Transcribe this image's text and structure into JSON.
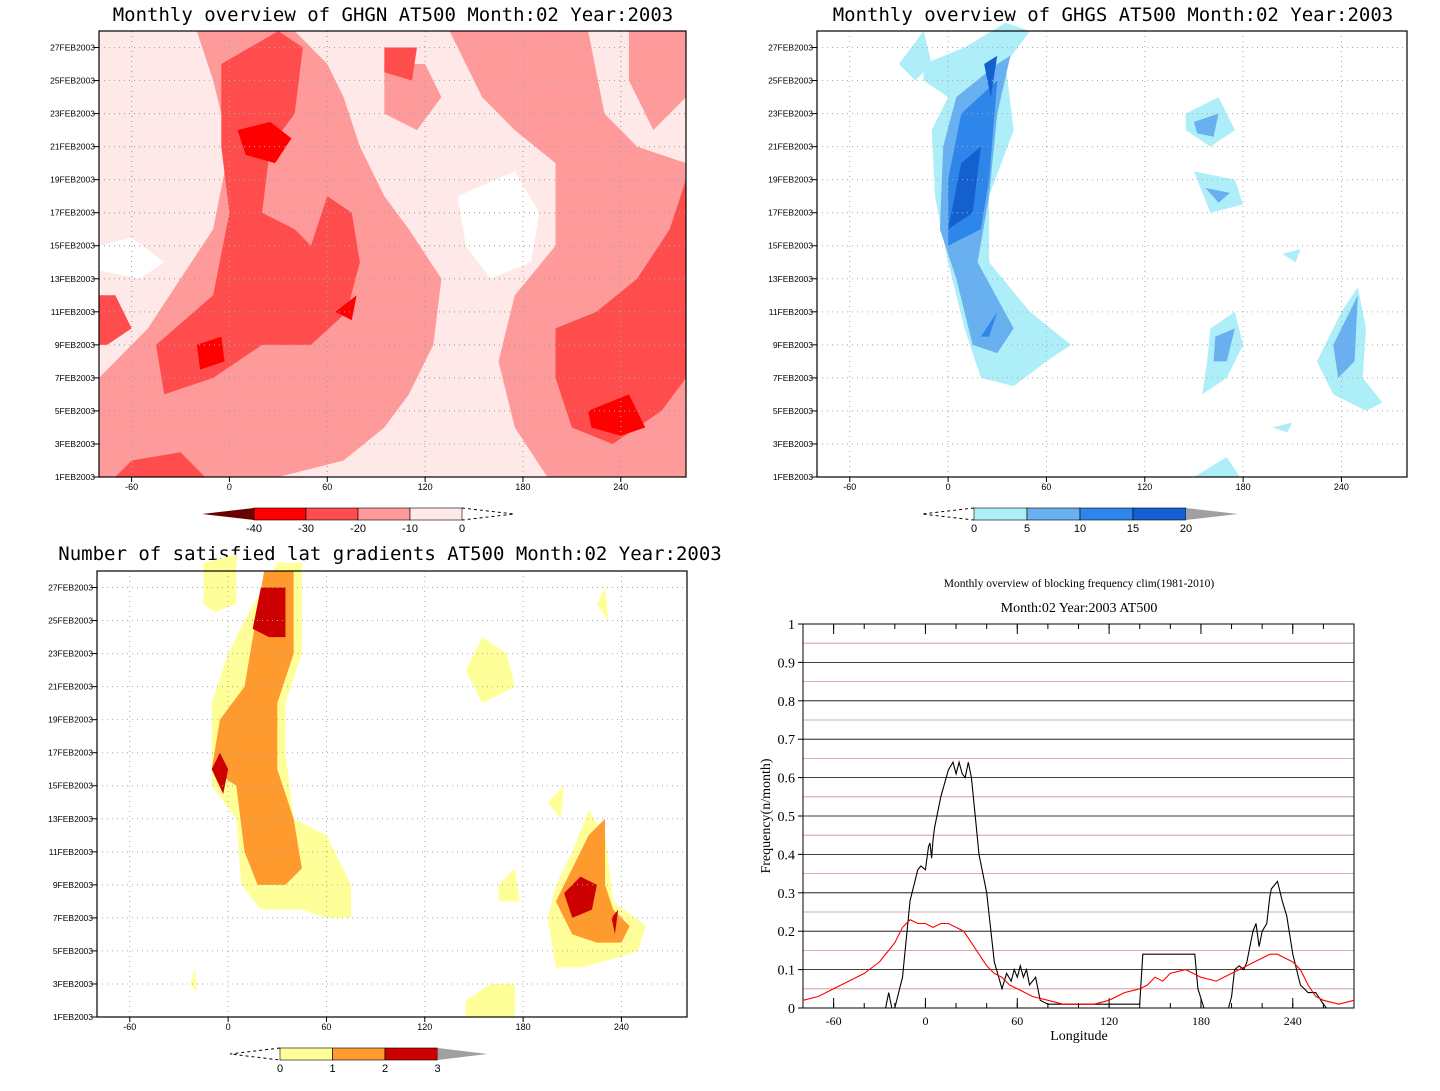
{
  "panels": {
    "ghgn": {
      "title": "Monthly overview of GHGN AT500 Month:02 Year:2003",
      "xticks": [
        {
          "v": -60,
          "label": "-60"
        },
        {
          "v": 0,
          "label": "0"
        },
        {
          "v": 60,
          "label": "60"
        },
        {
          "v": 120,
          "label": "120"
        },
        {
          "v": 180,
          "label": "180"
        },
        {
          "v": 240,
          "label": "240"
        }
      ],
      "yticks": [
        "1FEB2003",
        "3FEB2003",
        "5FEB2003",
        "7FEB2003",
        "9FEB2003",
        "11FEB2003",
        "13FEB2003",
        "15FEB2003",
        "17FEB2003",
        "19FEB2003",
        "21FEB2003",
        "23FEB2003",
        "25FEB2003",
        "27FEB2003"
      ],
      "colorbar": {
        "labels": [
          "-40",
          "-30",
          "-20",
          "-10",
          "0"
        ],
        "colors": [
          "#6b0000",
          "#ff0000",
          "#ff4c4c",
          "#ff9a9a",
          "#ffe8e8"
        ]
      }
    },
    "ghgs": {
      "title": "Monthly overview of GHGS AT500 Month:02 Year:2003",
      "xticks": [
        {
          "v": -60,
          "label": "-60"
        },
        {
          "v": 0,
          "label": "0"
        },
        {
          "v": 60,
          "label": "60"
        },
        {
          "v": 120,
          "label": "120"
        },
        {
          "v": 180,
          "label": "180"
        },
        {
          "v": 240,
          "label": "240"
        }
      ],
      "yticks": [
        "1FEB2003",
        "3FEB2003",
        "5FEB2003",
        "7FEB2003",
        "9FEB2003",
        "11FEB2003",
        "13FEB2003",
        "15FEB2003",
        "17FEB2003",
        "19FEB2003",
        "21FEB2003",
        "23FEB2003",
        "25FEB2003",
        "27FEB2003"
      ],
      "colorbar": {
        "labels": [
          "0",
          "5",
          "10",
          "15",
          "20"
        ],
        "colors": [
          "#aeeef8",
          "#68b0f0",
          "#2e86ea",
          "#1460d0",
          "#a0a0a0"
        ]
      }
    },
    "latgrad": {
      "title": "Number of satisfied lat gradients AT500 Month:02 Year:2003",
      "xticks": [
        {
          "v": -60,
          "label": "-60"
        },
        {
          "v": 0,
          "label": "0"
        },
        {
          "v": 60,
          "label": "60"
        },
        {
          "v": 120,
          "label": "120"
        },
        {
          "v": 180,
          "label": "180"
        },
        {
          "v": 240,
          "label": "240"
        }
      ],
      "yticks": [
        "1FEB2003",
        "3FEB2003",
        "5FEB2003",
        "7FEB2003",
        "9FEB2003",
        "11FEB2003",
        "13FEB2003",
        "15FEB2003",
        "17FEB2003",
        "19FEB2003",
        "21FEB2003",
        "23FEB2003",
        "25FEB2003",
        "27FEB2003"
      ],
      "colorbar": {
        "labels": [
          "0",
          "1",
          "2",
          "3"
        ],
        "colors": [
          "#ffff99",
          "#ff9a2e",
          "#cc0000",
          "#a0a0a0"
        ]
      }
    }
  },
  "chart_data": [
    {
      "type": "heatmap",
      "title": "Monthly overview of GHGN AT500 Month:02 Year:2003",
      "x_range": [
        -80,
        280
      ],
      "y_range": [
        "1FEB2003",
        "28FEB2003"
      ],
      "levels": [
        -40,
        -30,
        -20,
        -10,
        0
      ],
      "colors": {
        "below_-30": "#ff0000",
        "-30_to_-20": "#ff4c4c",
        "-20_to_-10": "#ff9a9a",
        "-10_to_0": "#ffe8e8",
        "above_0": "#ffffff"
      },
      "grid": true
    },
    {
      "type": "heatmap",
      "title": "Monthly overview of GHGS AT500 Month:02 Year:2003",
      "x_range": [
        -80,
        280
      ],
      "y_range": [
        "1FEB2003",
        "28FEB2003"
      ],
      "levels": [
        0,
        5,
        10,
        15,
        20
      ],
      "colors": {
        "0_to_5": "#aeeef8",
        "5_to_10": "#68b0f0",
        "10_to_15": "#2e86ea",
        "15_to_20": "#1460d0"
      },
      "grid": true
    },
    {
      "type": "heatmap",
      "title": "Number of satisfied lat gradients AT500 Month:02 Year:2003",
      "x_range": [
        -80,
        280
      ],
      "y_range": [
        "1FEB2003",
        "28FEB2003"
      ],
      "levels": [
        0,
        1,
        2,
        3
      ],
      "colors": {
        "0_to_1": "#ffff99",
        "1_to_2": "#ff9a2e",
        "2_to_3": "#cc0000"
      },
      "grid": true
    },
    {
      "type": "line",
      "title": "Monthly overview of blocking frequency clim(1981-2010)",
      "subtitle": "Month:02 Year:2003  AT500",
      "xlabel": "Longitude",
      "ylabel": "Frequency(n/month)",
      "xlim": [
        -80,
        280
      ],
      "ylim": [
        0,
        1
      ],
      "xticks": [
        -60,
        0,
        60,
        120,
        180,
        240
      ],
      "yticks": [
        0,
        0.1,
        0.2,
        0.3,
        0.4,
        0.5,
        0.6,
        0.7,
        0.8,
        0.9,
        1
      ],
      "series": [
        {
          "color": "#000000",
          "x": [
            -80,
            -26,
            -24,
            -22,
            -20,
            -15,
            -10,
            -5,
            -3,
            0,
            2,
            3,
            4,
            5,
            6,
            10,
            15,
            18,
            20,
            22,
            24,
            26,
            28,
            30,
            33,
            35,
            40,
            45,
            50,
            53,
            56,
            58,
            60,
            62,
            64,
            66,
            68,
            72,
            75,
            80,
            90,
            100,
            120,
            138,
            140,
            142,
            150,
            160,
            170,
            176,
            178,
            182,
            186,
            190,
            195,
            198,
            200,
            202,
            205,
            208,
            210,
            212,
            214,
            216,
            218,
            220,
            223,
            225,
            226,
            228,
            230,
            233,
            236,
            240,
            245,
            250,
            255,
            260,
            262,
            280
          ],
          "y": [
            0,
            0,
            0.04,
            0,
            0,
            0.08,
            0.28,
            0.36,
            0.37,
            0.36,
            0.42,
            0.43,
            0.39,
            0.44,
            0.47,
            0.55,
            0.62,
            0.64,
            0.61,
            0.64,
            0.61,
            0.6,
            0.64,
            0.6,
            0.48,
            0.4,
            0.3,
            0.12,
            0.05,
            0.09,
            0.07,
            0.1,
            0.08,
            0.11,
            0.08,
            0.1,
            0.06,
            0.08,
            0.02,
            0.01,
            0.01,
            0.01,
            0.01,
            0.01,
            0.01,
            0.14,
            0.14,
            0.14,
            0.14,
            0.14,
            0.05,
            0,
            0,
            0,
            0,
            0,
            0.03,
            0.1,
            0.11,
            0.1,
            0.12,
            0.16,
            0.2,
            0.22,
            0.16,
            0.2,
            0.22,
            0.29,
            0.31,
            0.32,
            0.33,
            0.28,
            0.24,
            0.14,
            0.06,
            0.04,
            0.04,
            0.01,
            0,
            0
          ]
        },
        {
          "color": "#ff0000",
          "x": [
            -80,
            -70,
            -60,
            -50,
            -40,
            -30,
            -20,
            -15,
            -10,
            -5,
            0,
            5,
            10,
            15,
            20,
            25,
            30,
            35,
            40,
            45,
            50,
            55,
            60,
            70,
            80,
            90,
            100,
            110,
            120,
            130,
            140,
            145,
            150,
            155,
            160,
            170,
            175,
            180,
            190,
            200,
            205,
            210,
            215,
            220,
            225,
            230,
            235,
            240,
            245,
            250,
            255,
            260,
            270,
            280
          ],
          "y": [
            0.02,
            0.03,
            0.05,
            0.07,
            0.09,
            0.12,
            0.17,
            0.21,
            0.23,
            0.22,
            0.22,
            0.21,
            0.22,
            0.22,
            0.21,
            0.2,
            0.17,
            0.14,
            0.11,
            0.09,
            0.08,
            0.06,
            0.05,
            0.03,
            0.02,
            0.01,
            0.01,
            0.01,
            0.02,
            0.04,
            0.05,
            0.06,
            0.08,
            0.07,
            0.09,
            0.1,
            0.09,
            0.08,
            0.07,
            0.09,
            0.1,
            0.11,
            0.12,
            0.13,
            0.14,
            0.14,
            0.13,
            0.12,
            0.1,
            0.06,
            0.03,
            0.02,
            0.01,
            0.02
          ]
        }
      ],
      "grid": true
    }
  ]
}
